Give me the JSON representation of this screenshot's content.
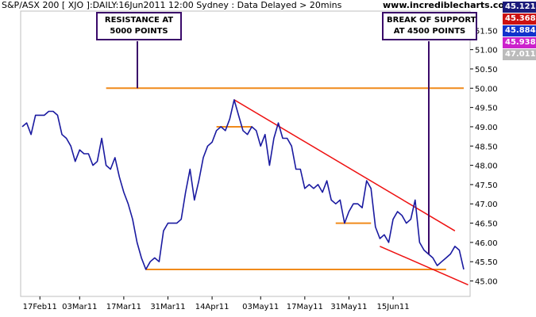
{
  "header": {
    "title": "S&P/ASX 200 [ XJO ]:DAILY:16Jun2011 12:00 Sydney : Data Delayed > 20mins",
    "site": "www.incrediblecharts.com"
  },
  "annotations": {
    "resistance": [
      "RESISTANCE AT",
      "5000 POINTS"
    ],
    "break": [
      "BREAK OF SUPPORT",
      "AT 4500 POINTS"
    ]
  },
  "price_badges": [
    {
      "label": "45.121",
      "color": "#1a1a7a"
    },
    {
      "label": "45.3689",
      "color": "#cc1111"
    },
    {
      "label": "45.8841",
      "color": "#1133cc"
    },
    {
      "label": "45.9382",
      "color": "#cc22cc"
    },
    {
      "label": "47.0115",
      "color": "#bbbbbb"
    }
  ],
  "colors": {
    "price_line": "#1a1aa0",
    "trend_line": "#ee1111",
    "support_line": "#f08a1a",
    "callout_line": "#3a0a6a",
    "axis_text": "#000000"
  },
  "chart_data": {
    "type": "line",
    "title": "S&P/ASX 200 [ XJO ]:DAILY:16Jun2011 12:00 Sydney : Data Delayed > 20mins",
    "xlabel": "",
    "ylabel": "",
    "x_tick_labels": [
      "17Feb11",
      "03Mar11",
      "17Mar11",
      "31Mar11",
      "14Apr11",
      "03May11",
      "17May11",
      "31May11",
      "15Jun11"
    ],
    "y_tick_labels": [
      "45.00",
      "45.50",
      "46.00",
      "46.50",
      "47.00",
      "47.50",
      "48.00",
      "48.50",
      "49.00",
      "49.50",
      "50.00",
      "50.50",
      "51.00",
      "51.50"
    ],
    "ylim": [
      44.6,
      52.0
    ],
    "series": [
      {
        "name": "",
        "values": [
          49.0,
          49.1,
          48.8,
          49.3,
          49.3,
          49.3,
          49.4,
          49.4,
          49.3,
          48.8,
          48.7,
          48.5,
          48.1,
          48.4,
          48.3,
          48.3,
          48.0,
          48.1,
          48.7,
          48.0,
          47.9,
          48.2,
          47.7,
          47.3,
          47.0,
          46.6,
          46.0,
          45.6,
          45.3,
          45.5,
          45.6,
          45.5,
          46.3,
          46.5,
          46.5,
          46.5,
          46.6,
          47.3,
          47.9,
          47.1,
          47.6,
          48.2,
          48.5,
          48.6,
          48.9,
          49.0,
          48.9,
          49.2,
          49.7,
          49.3,
          48.9,
          48.8,
          49.0,
          48.9,
          48.5,
          48.8,
          48.0,
          48.7,
          49.1,
          48.7,
          48.7,
          48.5,
          47.9,
          47.9,
          47.4,
          47.5,
          47.4,
          47.5,
          47.3,
          47.6,
          47.1,
          47.0,
          47.1,
          46.5,
          46.8,
          47.0,
          47.0,
          46.9,
          47.6,
          47.4,
          46.4,
          46.1,
          46.2,
          46.0,
          46.6,
          46.8,
          46.7,
          46.5,
          46.6,
          47.1,
          46.0,
          45.8,
          45.7,
          45.6,
          45.4,
          45.5,
          45.6,
          45.7,
          45.9,
          45.8,
          45.3
        ],
        "x_tick_indices": [
          4,
          13,
          23,
          33,
          43,
          54,
          64,
          74,
          84
        ]
      }
    ],
    "support_levels": [
      {
        "value": 50.0,
        "x_start_index": 19,
        "x_end_index": 100
      },
      {
        "value": 45.3,
        "x_start_index": 28,
        "x_end_index": 96
      },
      {
        "value": 49.0,
        "x_start_index": 44,
        "x_end_index": 52
      },
      {
        "value": 46.5,
        "x_start_index": 71,
        "x_end_index": 79
      }
    ],
    "trend_lines": [
      {
        "from": {
          "index": 48,
          "value": 49.7
        },
        "to": {
          "index": 98,
          "value": 46.3
        }
      },
      {
        "from": {
          "index": 81,
          "value": 45.9
        },
        "to": {
          "index": 101,
          "value": 44.9
        }
      }
    ],
    "grid": false,
    "legend": "none"
  }
}
